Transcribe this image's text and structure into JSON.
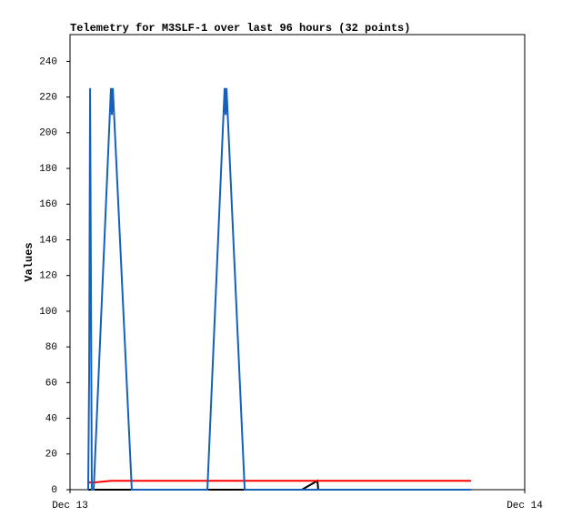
{
  "chart_data": {
    "type": "line",
    "title": "Telemetry for M3SLF-1 over last 96 hours (32 points)",
    "y_label": "Values",
    "x": [
      0.96,
      1.01,
      1.06,
      1.15,
      1.25,
      2.16,
      2.21,
      2.26,
      3.26,
      3.8,
      4.5,
      5.2,
      6,
      6.6,
      7.25,
      8.16,
      8.21,
      8.26,
      9.22,
      10.5,
      11.5,
      12.24,
      13.06,
      13.1,
      14.5,
      15.2,
      16,
      17.5,
      18.2,
      19,
      20,
      21.17
    ],
    "series": [
      {
        "color": "#000000",
        "values": [
          0,
          0,
          0,
          0,
          0,
          0,
          0,
          0,
          0,
          0,
          0,
          0,
          0,
          0,
          0,
          0,
          0,
          0,
          0,
          0,
          0,
          0,
          5,
          0,
          0,
          0,
          0,
          0,
          0,
          0,
          0,
          0
        ]
      },
      {
        "color": "#ff0000",
        "values": [
          5,
          4,
          4,
          4,
          4,
          5,
          5,
          5,
          5,
          5,
          5,
          5,
          5,
          5,
          5,
          5,
          5,
          5,
          5,
          5,
          5,
          5,
          5,
          5,
          5,
          5,
          5,
          5,
          5,
          5,
          5,
          5
        ]
      },
      {
        "color": "#1560bd",
        "values": [
          0,
          65,
          225,
          0,
          0,
          225,
          210,
          225,
          0,
          0,
          0,
          0,
          0,
          0,
          0,
          225,
          210,
          225,
          0,
          0,
          0,
          0,
          0,
          0,
          0,
          0,
          0,
          0,
          0,
          0,
          0,
          0
        ]
      }
    ],
    "xlim": [
      0,
      24
    ],
    "xticks": [
      {
        "value": 0,
        "label": "Dec 13"
      },
      {
        "value": 24,
        "label": "Dec 14"
      }
    ],
    "ylim": [
      0,
      255
    ],
    "yticks": [
      0,
      20,
      40,
      60,
      80,
      100,
      120,
      140,
      160,
      180,
      200,
      220,
      240
    ]
  }
}
